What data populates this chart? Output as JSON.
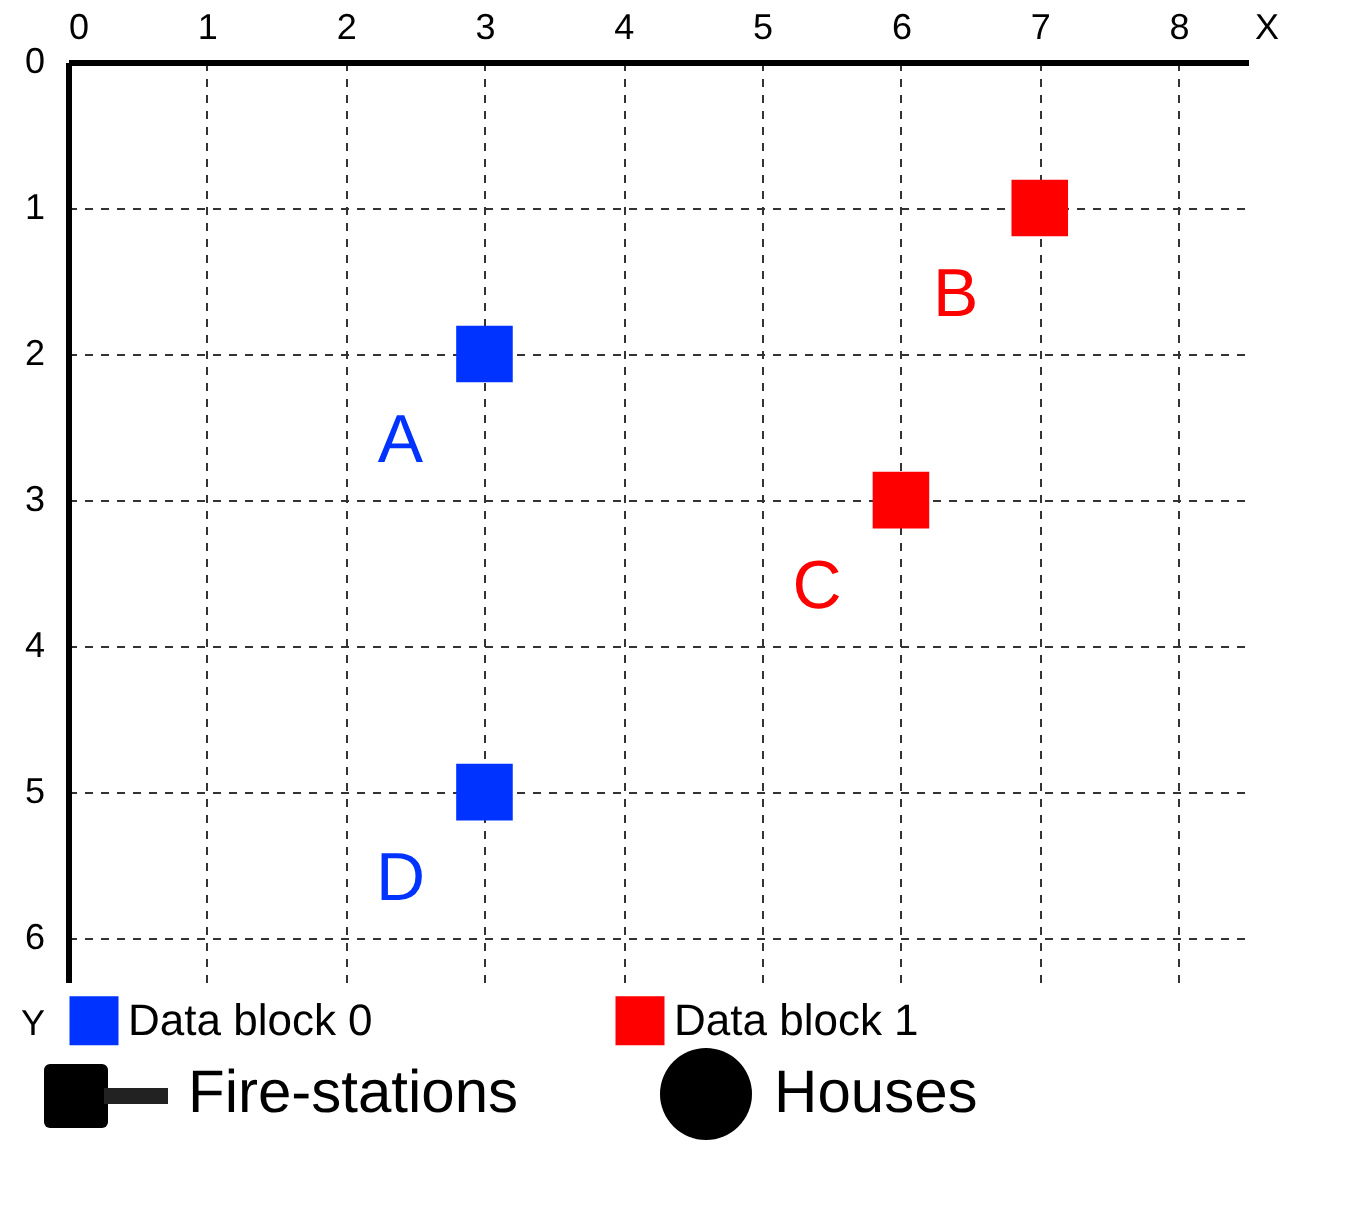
{
  "chart_data": {
    "type": "scatter",
    "xlabel": "X",
    "ylabel": "Y",
    "xlim": [
      0,
      8.5
    ],
    "ylim": [
      6.3,
      0
    ],
    "xticks": [
      0,
      1,
      2,
      3,
      4,
      5,
      6,
      7,
      8
    ],
    "yticks": [
      0,
      1,
      2,
      3,
      4,
      5,
      6
    ],
    "grid": true,
    "marker": "square",
    "legend": "bottom",
    "series": [
      {
        "name": "Data block 0",
        "color": "#0033ff",
        "x": [
          3,
          3
        ],
        "values": [
          2,
          5
        ]
      },
      {
        "name": "Data block 1",
        "color": "#ff0000",
        "x": [
          7,
          6
        ],
        "values": [
          1,
          3
        ]
      }
    ],
    "annotations": [
      {
        "text": "A",
        "x": 3,
        "y": 2
      },
      {
        "text": "B",
        "x": 7,
        "y": 1
      },
      {
        "text": "C",
        "x": 6,
        "y": 3
      },
      {
        "text": "D",
        "x": 3,
        "y": 5
      },
      "Fire-stations",
      "Houses"
    ]
  }
}
